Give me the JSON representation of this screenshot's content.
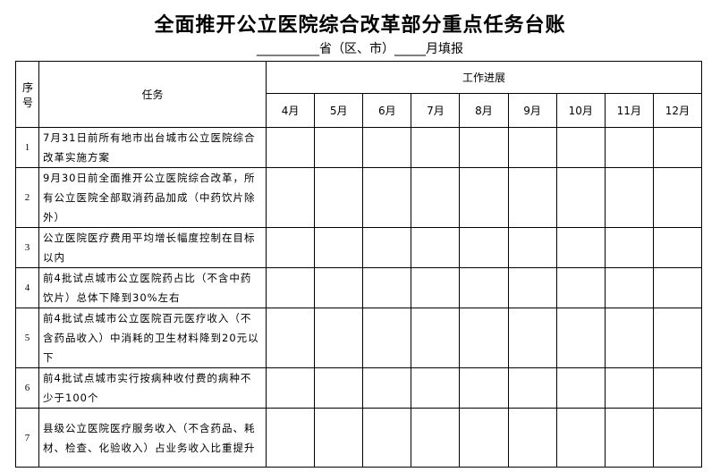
{
  "title": "全面推开公立医院综合改革部分重点任务台账",
  "subtitle": "__________省（区、市）_____月填报",
  "headers": {
    "seq": "序号",
    "task": "任务",
    "progress": "工作进展",
    "months": [
      "4月",
      "5月",
      "6月",
      "7月",
      "8月",
      "9月",
      "10月",
      "11月",
      "12月"
    ]
  },
  "rows": [
    {
      "seq": "1",
      "task": "7月31日前所有地市出台城市公立医院综合改革实施方案"
    },
    {
      "seq": "2",
      "task": "9月30日前全面推开公立医院综合改革，所有公立医院全部取消药品加成（中药饮片除外）"
    },
    {
      "seq": "3",
      "task": "公立医院医疗费用平均增长幅度控制在目标以内"
    },
    {
      "seq": "4",
      "task": "前4批试点城市公立医院药占比（不含中药饮片）总体下降到30%左右"
    },
    {
      "seq": "5",
      "task": "前4批试点城市公立医院百元医疗收入（不含药品收入）中消耗的卫生材料降到20元以下"
    },
    {
      "seq": "6",
      "task": "前4批试点城市实行按病种收付费的病种不少于100个"
    },
    {
      "seq": "7",
      "task": "县级公立医院医疗服务收入（不含药品、耗材、检查、化验收入）占业务收入比重提升"
    }
  ]
}
